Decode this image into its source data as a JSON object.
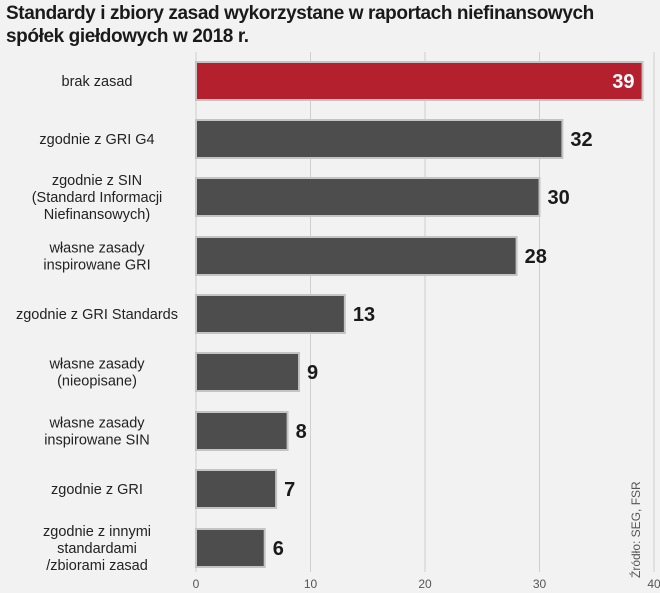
{
  "chart_data": {
    "type": "bar",
    "orientation": "horizontal",
    "title": "Standardy i zbiory zasad wykorzystane w raportach niefinansowych spółek giełdowych w 2018 r.",
    "categories": [
      [
        "brak zasad"
      ],
      [
        "zgodnie z GRI G4"
      ],
      [
        "zgodnie z SIN",
        "(Standard Informacji",
        "Niefinansowych)"
      ],
      [
        "własne zasady",
        "inspirowane GRI"
      ],
      [
        "zgodnie z GRI Standards"
      ],
      [
        "własne zasady",
        "(nieopisane)"
      ],
      [
        "własne zasady",
        "inspirowane SIN"
      ],
      [
        "zgodnie z GRI"
      ],
      [
        "zgodnie z innymi",
        "standardami",
        "/zbiorami zasad"
      ]
    ],
    "values": [
      39,
      32,
      30,
      28,
      13,
      9,
      8,
      7,
      6
    ],
    "xlim": [
      0,
      40
    ],
    "xticks": [
      0,
      10,
      20,
      30,
      40
    ],
    "grid": true,
    "source": "Źródło: SEG, FSR",
    "colors": {
      "highlight": "#b5202e",
      "bar": "#4d4d4d",
      "bar_border": "#c4c4c4",
      "grid": "#cfcfcf"
    }
  }
}
